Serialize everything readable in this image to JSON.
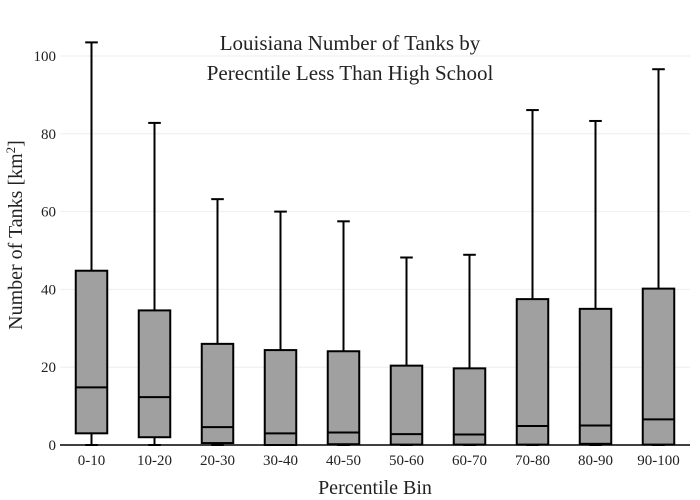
{
  "chart_data": {
    "type": "box",
    "title_lines": [
      "Louisiana Number of Tanks by",
      "Perecntile Less Than High School"
    ],
    "xlabel": "Percentile Bin",
    "ylabel_main": "Number of Tanks  [km",
    "ylabel_sup": "2",
    "ylabel_end": "]",
    "ylim": [
      0,
      105
    ],
    "yticks": [
      0,
      20,
      40,
      60,
      80,
      100
    ],
    "grid": true,
    "colors": {
      "box_fill": "#a0a0a0",
      "stroke": "#000000",
      "grid": "#eeeeee"
    },
    "categories": [
      "0-10",
      "10-20",
      "20-30",
      "30-40",
      "40-50",
      "50-60",
      "60-70",
      "70-80",
      "80-90",
      "90-100"
    ],
    "boxes": [
      {
        "min": 0,
        "q1": 3.0,
        "median": 14.8,
        "q3": 44.8,
        "max": 103.5
      },
      {
        "min": 0,
        "q1": 2.0,
        "median": 12.3,
        "q3": 34.6,
        "max": 82.8
      },
      {
        "min": 0,
        "q1": 0.5,
        "median": 4.6,
        "q3": 26.0,
        "max": 63.2
      },
      {
        "min": 0,
        "q1": 0.0,
        "median": 3.0,
        "q3": 24.4,
        "max": 60.0
      },
      {
        "min": 0,
        "q1": 0.2,
        "median": 3.2,
        "q3": 24.1,
        "max": 57.5
      },
      {
        "min": 0,
        "q1": 0.1,
        "median": 2.8,
        "q3": 20.4,
        "max": 48.2
      },
      {
        "min": 0,
        "q1": 0.1,
        "median": 2.7,
        "q3": 19.7,
        "max": 48.9
      },
      {
        "min": 0,
        "q1": 0.1,
        "median": 4.9,
        "q3": 37.5,
        "max": 86.1
      },
      {
        "min": 0,
        "q1": 0.3,
        "median": 5.0,
        "q3": 35.0,
        "max": 83.3
      },
      {
        "min": 0,
        "q1": 0.1,
        "median": 6.6,
        "q3": 40.2,
        "max": 96.6
      }
    ]
  }
}
